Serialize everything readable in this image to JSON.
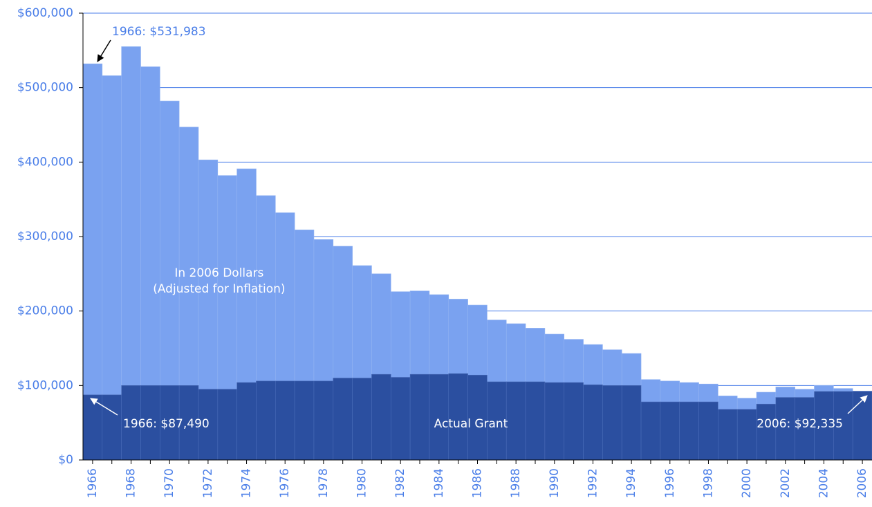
{
  "chart_data": {
    "type": "bar",
    "categories": [
      "1966",
      null,
      "1968",
      null,
      "1970",
      null,
      "1972",
      null,
      "1974",
      null,
      "1976",
      null,
      "1978",
      null,
      "1980",
      null,
      "1982",
      null,
      "1984",
      null,
      "1986",
      null,
      "1988",
      null,
      "1990",
      null,
      "1992",
      null,
      "1994",
      null,
      "1996",
      null,
      "1998",
      null,
      "2000",
      null,
      "2002",
      null,
      "2004",
      null,
      "2006"
    ],
    "series": [
      {
        "name": "In 2006 Dollars",
        "color": "#7aa2f0",
        "values": [
          531983,
          516000,
          555000,
          528000,
          482000,
          447000,
          403000,
          382000,
          391000,
          355000,
          332000,
          309000,
          296000,
          287000,
          261000,
          250000,
          226000,
          227000,
          222000,
          216000,
          208000,
          188000,
          183000,
          177000,
          169000,
          162000,
          155000,
          148000,
          143000,
          108000,
          106000,
          104000,
          102000,
          86000,
          83000,
          91000,
          98000,
          95000,
          100000,
          96000,
          92335
        ]
      },
      {
        "name": "Actual Grant",
        "color": "#2b4fa0",
        "values": [
          87490,
          87490,
          100000,
          100000,
          100000,
          100000,
          95000,
          95000,
          104000,
          106000,
          106000,
          106000,
          106000,
          110000,
          110000,
          115000,
          111000,
          115000,
          115000,
          116000,
          114000,
          105000,
          105000,
          105000,
          104000,
          104000,
          101000,
          100000,
          100000,
          78000,
          78000,
          78000,
          78000,
          68000,
          68000,
          75000,
          84000,
          84000,
          92000,
          92000,
          92335
        ]
      }
    ],
    "series_note": "(Adjusted for Inflation)",
    "annotations": [
      "1966: $531,983",
      "1966: $87,490",
      "2006: $92,335"
    ],
    "ylim": [
      0,
      600000
    ],
    "yticks": [
      {
        "value": 0,
        "label": "$0"
      },
      {
        "value": 100000,
        "label": "$100,000"
      },
      {
        "value": 200000,
        "label": "$200,000"
      },
      {
        "value": 300000,
        "label": "$300,000"
      },
      {
        "value": 400000,
        "label": "$400,000"
      },
      {
        "value": 500000,
        "label": "$500,000"
      },
      {
        "value": 600000,
        "label": "$600,000"
      }
    ],
    "grid": true
  }
}
